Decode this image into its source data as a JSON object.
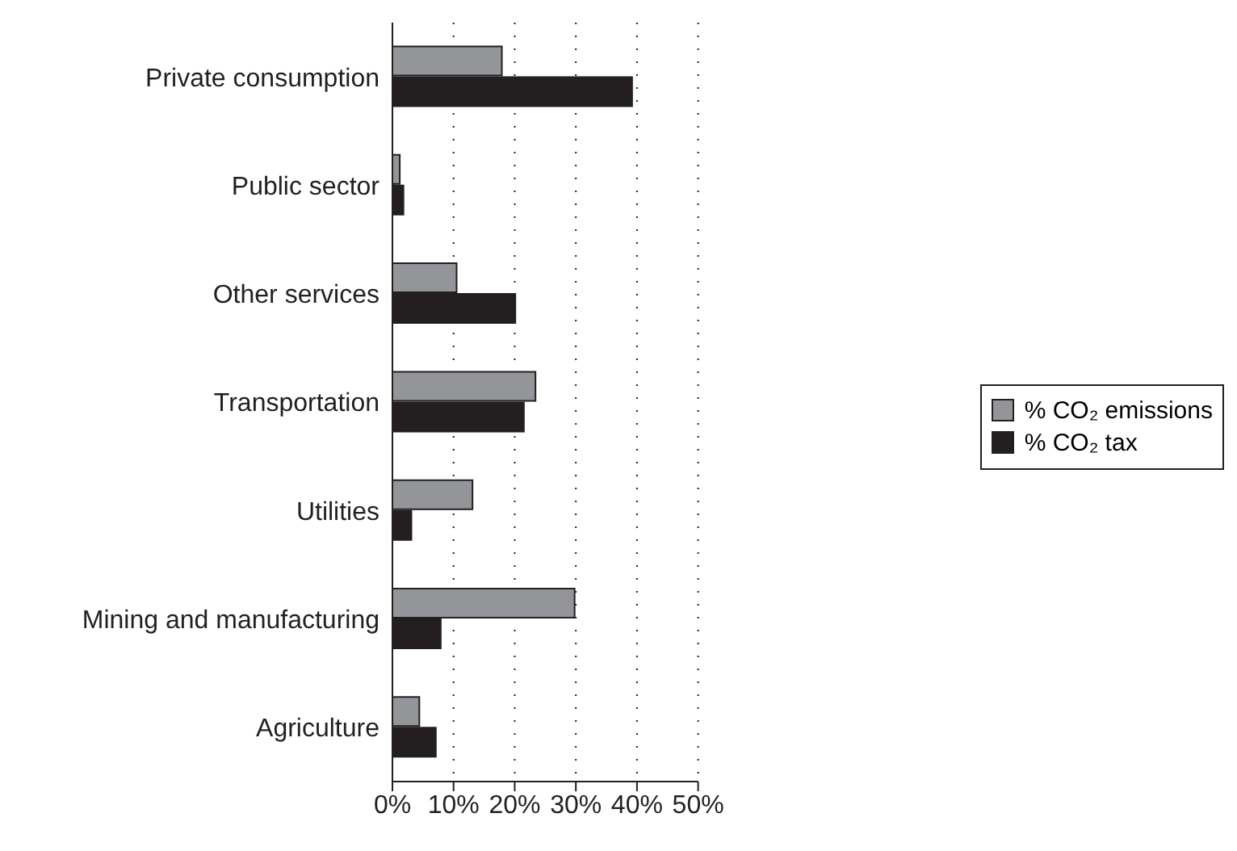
{
  "chart_data": {
    "type": "bar",
    "orientation": "horizontal",
    "categories": [
      "Private consumption",
      "Public sector",
      "Other services",
      "Transportation",
      "Utilities",
      "Mining and manufacturing",
      "Agriculture"
    ],
    "series": [
      {
        "name": "% CO₂ emissions",
        "color": "#939598",
        "values": [
          17.9,
          1.2,
          10.5,
          23.4,
          13.1,
          29.8,
          4.4
        ]
      },
      {
        "name": "% CO₂ tax",
        "color": "#231f20",
        "values": [
          39.2,
          1.8,
          20.1,
          21.5,
          3.1,
          7.9,
          7.1
        ]
      }
    ],
    "xlim": [
      0,
      50
    ],
    "xticks": [
      {
        "value": 0,
        "label": "0%"
      },
      {
        "value": 10,
        "label": "10%"
      },
      {
        "value": 20,
        "label": "20%"
      },
      {
        "value": 30,
        "label": "30%"
      },
      {
        "value": 40,
        "label": "40%"
      },
      {
        "value": 50,
        "label": "50%"
      }
    ],
    "grid": "x",
    "legend": "right"
  }
}
